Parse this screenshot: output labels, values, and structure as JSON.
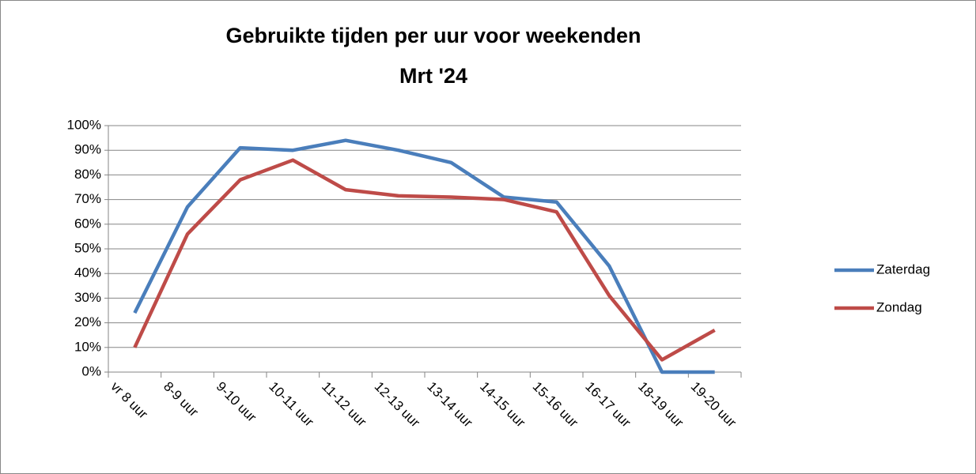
{
  "chart_data": {
    "type": "line",
    "title": [
      "Gebruikte tijden per uur voor weekenden",
      "Mrt '24"
    ],
    "categories": [
      "vr 8 uur",
      "8-9 uur",
      "9-10 uur",
      "10-11 uur",
      "11-12 uur",
      "12-13 uur",
      "13-14 uur",
      "14-15 uur",
      "15-16 uur",
      "16-17 uur",
      "18-19 uur",
      "19-20 uur"
    ],
    "series": [
      {
        "name": "Zaterdag",
        "color": "#4a7ebb",
        "values": [
          24,
          67,
          91,
          90,
          94,
          90,
          85,
          71,
          69,
          43,
          0,
          0
        ]
      },
      {
        "name": "Zondag",
        "color": "#be4b48",
        "values": [
          10,
          56,
          78,
          86,
          74,
          71.5,
          71,
          70,
          65,
          31,
          5,
          17
        ]
      }
    ],
    "ylim": [
      0,
      100
    ],
    "yticks": [
      {
        "value": 0,
        "label": "0%"
      },
      {
        "value": 10,
        "label": "10%"
      },
      {
        "value": 20,
        "label": "20%"
      },
      {
        "value": 30,
        "label": "30%"
      },
      {
        "value": 40,
        "label": "40%"
      },
      {
        "value": 50,
        "label": "50%"
      },
      {
        "value": 60,
        "label": "60%"
      },
      {
        "value": 70,
        "label": "70%"
      },
      {
        "value": 80,
        "label": "80%"
      },
      {
        "value": 90,
        "label": "90%"
      },
      {
        "value": 100,
        "label": "100%"
      }
    ],
    "grid": true,
    "legend": "right"
  }
}
